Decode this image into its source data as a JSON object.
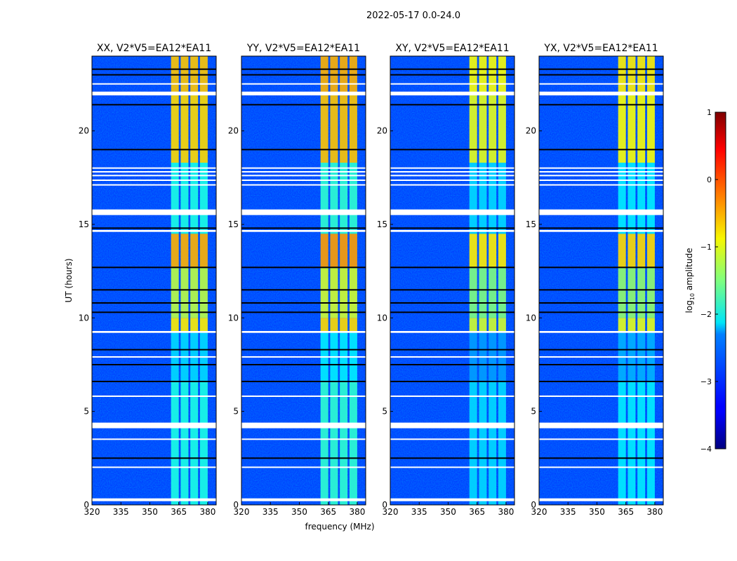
{
  "chart_data": {
    "type": "heatmap",
    "title": "2022-05-17 0.0-24.0",
    "xlabel": "frequency (MHz)",
    "ylabel": "UT (hours)",
    "xlim": [
      320,
      384.4
    ],
    "ylim": [
      0,
      24
    ],
    "x_ticks": [
      320,
      335,
      350,
      365,
      380
    ],
    "y_ticks": [
      0,
      5,
      10,
      15,
      20
    ],
    "colorbar": {
      "label": "log10 amplitude",
      "label_main": "log",
      "label_sub": "10",
      "label_rest": " amplitude",
      "range": [
        -4,
        1
      ],
      "ticks": [
        "1",
        "0",
        "−1",
        "−2",
        "−3",
        "−4"
      ],
      "tick_values": [
        1,
        0,
        -1,
        -2,
        -3,
        -4
      ],
      "colormap": "jet"
    },
    "background_level": -3.1,
    "rfi_subbands_mhz": [
      [
        361,
        365
      ],
      [
        366,
        370
      ],
      [
        371,
        375
      ],
      [
        376,
        380
      ]
    ],
    "time_segments": [
      {
        "t": [
          0,
          6.6
        ],
        "level": -2.0
      },
      {
        "t": [
          6.6,
          9.3
        ],
        "level": -2.3
      },
      {
        "t": [
          9.3,
          10.0
        ],
        "level": -0.8
      },
      {
        "t": [
          10.0,
          12.7
        ],
        "level": -1.2
      },
      {
        "t": [
          12.7,
          14.5
        ],
        "level": -0.5
      },
      {
        "t": [
          14.5,
          18.3
        ],
        "level": -2.0
      },
      {
        "t": [
          18.3,
          22.0
        ],
        "level": -0.7
      },
      {
        "t": [
          22.0,
          24.0
        ],
        "level": -0.6
      }
    ],
    "flagged_hours": [
      [
        0.2,
        0.35
      ],
      [
        2.0,
        2.05
      ],
      [
        3.5,
        3.55
      ],
      [
        4.1,
        4.4
      ],
      [
        5.8,
        5.85
      ],
      [
        7.9,
        7.95
      ],
      [
        9.2,
        9.3
      ],
      [
        15.5,
        15.8
      ],
      [
        17.1,
        17.15
      ],
      [
        17.35,
        17.4
      ],
      [
        17.6,
        17.65
      ],
      [
        17.8,
        17.85
      ],
      [
        18.0,
        18.05
      ],
      [
        21.9,
        22.1
      ],
      [
        22.5,
        22.55
      ],
      [
        14.6,
        14.7
      ]
    ],
    "zero_hours": [
      2.5,
      6.6,
      7.5,
      8.3,
      10.3,
      10.8,
      11.5,
      12.7,
      14.8,
      19.0,
      21.4,
      23.0,
      23.3
    ],
    "panels": [
      {
        "title": "XX, V2*V5=EA12*EA11",
        "rfi_offset": 0
      },
      {
        "title": "YY, V2*V5=EA12*EA11",
        "rfi_offset": 0.1
      },
      {
        "title": "XY, V2*V5=EA12*EA11",
        "rfi_offset": -0.3
      },
      {
        "title": "YX, V2*V5=EA12*EA11",
        "rfi_offset": -0.2
      }
    ]
  }
}
